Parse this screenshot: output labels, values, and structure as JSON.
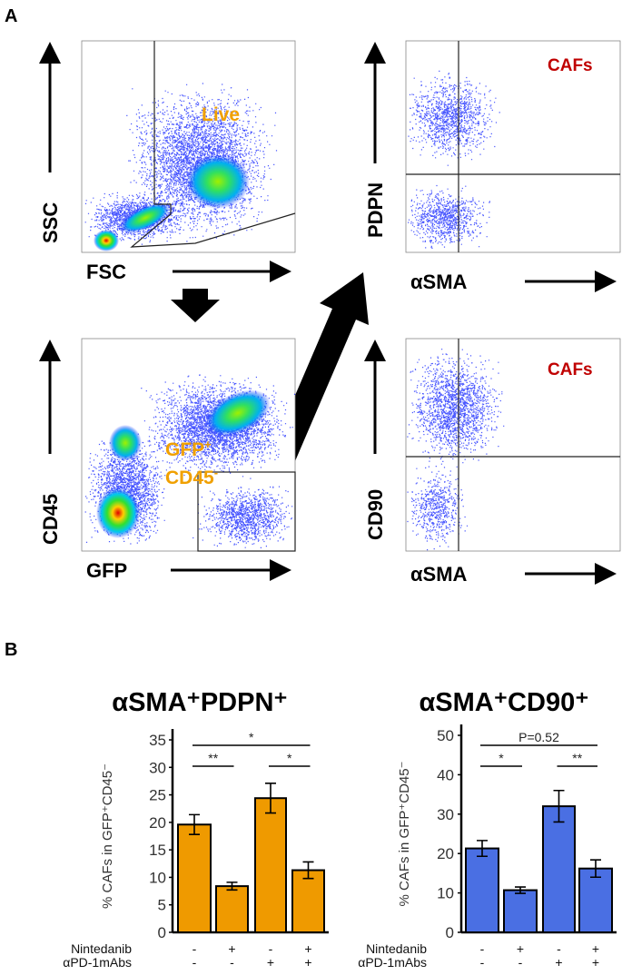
{
  "panels": {
    "a": "A",
    "b": "B"
  },
  "flow_plots": [
    {
      "name": "fsc-ssc",
      "ylabel": "SSC",
      "xlabel": "FSC",
      "gate_label": "Live"
    },
    {
      "name": "gfp-cd45",
      "ylabel": "CD45",
      "xlabel": "GFP",
      "gate_label_1": "GFP",
      "gate_label_1_sup": "+",
      "gate_label_2": "CD45",
      "gate_label_2_sup": "-"
    },
    {
      "name": "asma-pdpn",
      "ylabel": "PDPN",
      "xlabel": "αSMA",
      "gate_label": "CAFs"
    },
    {
      "name": "asma-cd90",
      "ylabel": "CD90",
      "xlabel": "αSMA",
      "gate_label": "CAFs"
    }
  ],
  "colors": {
    "orange": "#ef9a00",
    "blue": "#4a6fe3"
  },
  "chart_data": [
    {
      "type": "bar",
      "title": "αSMA⁺PDPN⁺",
      "ylabel": "% CAFs in GFP⁺CD45⁻",
      "ylim": [
        0,
        35
      ],
      "yticks": [
        0,
        5,
        10,
        15,
        20,
        25,
        30,
        35
      ],
      "categories": [
        "1",
        "2",
        "3",
        "4"
      ],
      "values": [
        19.6,
        8.4,
        24.4,
        11.3
      ],
      "errors": [
        1.8,
        0.7,
        2.7,
        1.5
      ],
      "color": "#ef9a00",
      "conditions": [
        {
          "label": "Nintedanib",
          "values": [
            "-",
            "+",
            "-",
            "+"
          ]
        },
        {
          "label": "αPD-1mAbs",
          "values": [
            "-",
            "-",
            "+",
            "+"
          ]
        }
      ],
      "significance": [
        {
          "from": 0,
          "to": 3,
          "label": "*",
          "level": 2
        },
        {
          "from": 0,
          "to": 1,
          "label": "**",
          "level": 1
        },
        {
          "from": 2,
          "to": 3,
          "label": "*",
          "level": 1
        }
      ]
    },
    {
      "type": "bar",
      "title": "αSMA⁺CD90⁺",
      "ylabel": "% CAFs in GFP⁺CD45⁻",
      "ylim": [
        0,
        50
      ],
      "yticks": [
        0,
        10,
        20,
        30,
        40,
        50
      ],
      "categories": [
        "1",
        "2",
        "3",
        "4"
      ],
      "values": [
        21.3,
        10.7,
        32.0,
        16.2
      ],
      "errors": [
        2.0,
        0.8,
        4.0,
        2.2
      ],
      "color": "#4a6fe3",
      "conditions": [
        {
          "label": "Nintedanib",
          "values": [
            "-",
            "+",
            "-",
            "+"
          ]
        },
        {
          "label": "αPD-1mAbs",
          "values": [
            "-",
            "-",
            "+",
            "+"
          ]
        }
      ],
      "significance": [
        {
          "from": 0,
          "to": 3,
          "label": "P=0.52",
          "level": 2
        },
        {
          "from": 0,
          "to": 1,
          "label": "*",
          "level": 1
        },
        {
          "from": 2,
          "to": 3,
          "label": "**",
          "level": 1
        }
      ]
    }
  ]
}
